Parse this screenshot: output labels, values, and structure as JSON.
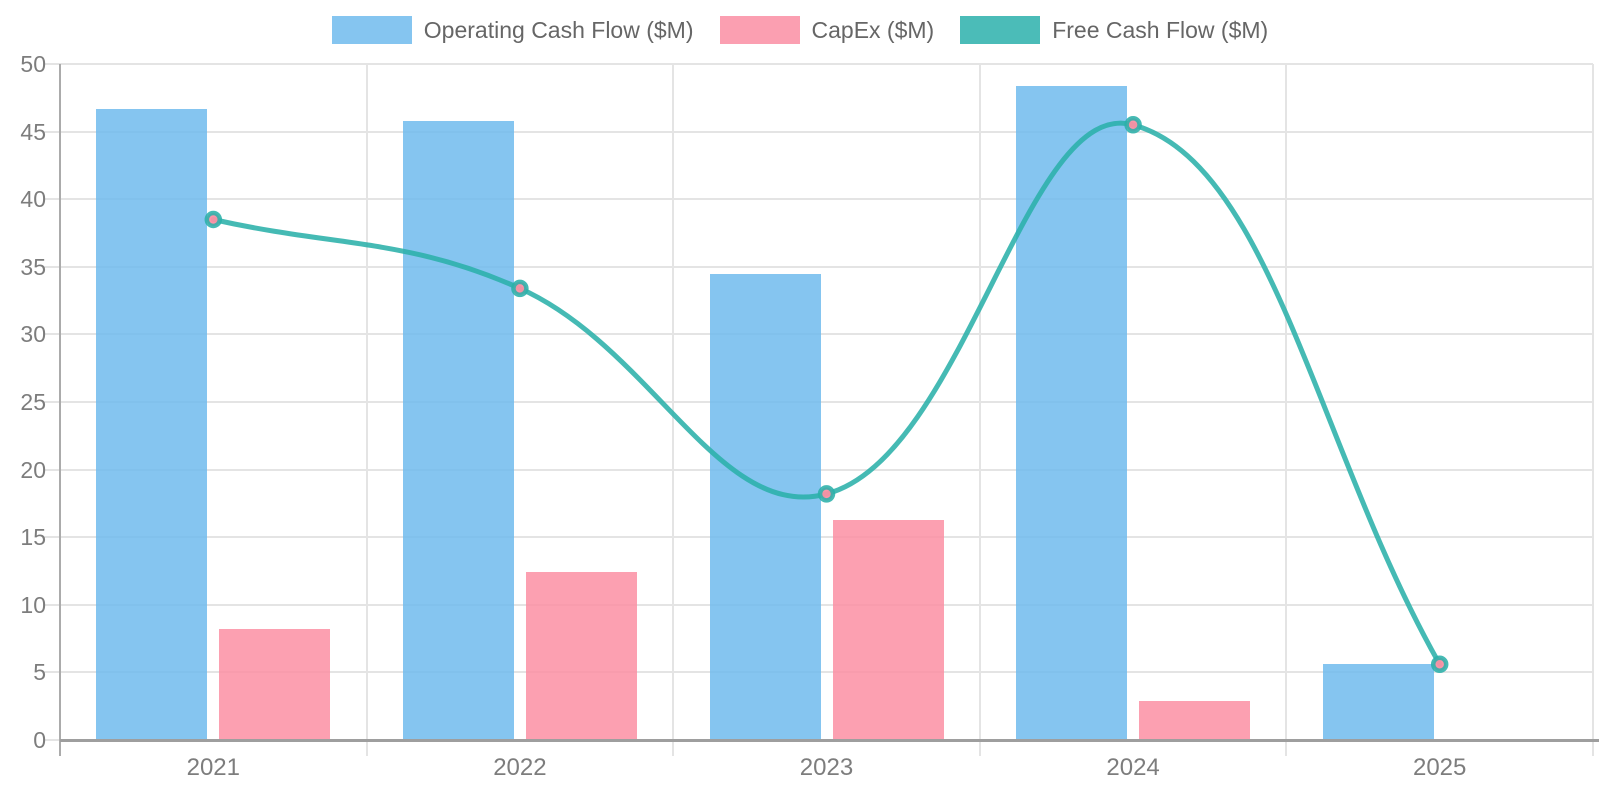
{
  "legend": {
    "items": [
      {
        "label": "Operating Cash Flow ($M)",
        "color": "#85C5F0"
      },
      {
        "label": "CapEx ($M)",
        "color": "#FB9FB1"
      },
      {
        "label": "Free Cash Flow ($M)",
        "color": "#4BBCB8"
      }
    ]
  },
  "chart_data": {
    "type": "combo-bar-line",
    "categories": [
      "2021",
      "2022",
      "2023",
      "2024",
      "2025"
    ],
    "series": [
      {
        "name": "Operating Cash Flow ($M)",
        "type": "bar",
        "color": "#85C5F0",
        "fill_rgba": "rgba(112,187,237,0.85)",
        "values": [
          46.7,
          45.8,
          34.5,
          48.4,
          5.6
        ]
      },
      {
        "name": "CapEx ($M)",
        "type": "bar",
        "color": "#FB9FB1",
        "fill_rgba": "rgba(251,143,163,0.85)",
        "values": [
          8.2,
          12.4,
          16.3,
          2.9,
          0
        ]
      },
      {
        "name": "Free Cash Flow ($M)",
        "type": "line",
        "color": "#4BBCB8",
        "stroke_rgba": "rgba(43,177,170,0.88)",
        "marker_fill": "rgba(251,143,163,0.95)",
        "values": [
          38.5,
          33.4,
          18.2,
          45.5,
          5.6
        ]
      }
    ],
    "yticks": [
      0,
      5,
      10,
      15,
      20,
      25,
      30,
      35,
      40,
      45,
      50
    ],
    "ylim": [
      0,
      50
    ],
    "grid": true,
    "legend_position": "top",
    "gridline_color": "#e4e4e4",
    "axis_color": "#ababab",
    "baseline_color": "#9e9e9e",
    "tick_label_color": "#7d7d7d",
    "legend_text_color": "#666666"
  }
}
